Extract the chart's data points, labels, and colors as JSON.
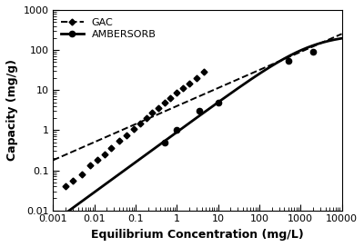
{
  "title": "",
  "xlabel": "Equilibrium Concentration (mg/L)",
  "ylabel": "Capacity (mg/g)",
  "xlim": [
    0.001,
    10000
  ],
  "ylim": [
    0.01,
    1000
  ],
  "background_color": "#ffffff",
  "gac_line_color": "#000000",
  "gac_line_style": "dashed",
  "gac_marker": "D",
  "gac_marker_size": 3.5,
  "gac_label": "GAC",
  "gac_K": 4.0,
  "gac_n": 0.45,
  "amb_line_color": "#000000",
  "amb_line_style": "solid",
  "amb_marker": "o",
  "amb_marker_size": 4.5,
  "amb_label": "AMBERSORB",
  "amb_Qmax": 250,
  "amb_KL": 0.00055,
  "amb_n": 0.75,
  "gac_data_x": [
    0.002,
    0.003,
    0.005,
    0.008,
    0.012,
    0.018,
    0.025,
    0.04,
    0.06,
    0.09,
    0.13,
    0.18,
    0.25,
    0.35,
    0.5,
    0.7,
    1.0,
    1.4,
    2.0,
    3.0,
    4.5
  ],
  "gac_data_y": [
    0.04,
    0.055,
    0.08,
    0.13,
    0.18,
    0.25,
    0.35,
    0.55,
    0.75,
    1.1,
    1.5,
    2.0,
    2.7,
    3.5,
    4.8,
    6.2,
    8.5,
    11.0,
    14.5,
    20.0,
    28.0
  ],
  "amb_data_x": [
    0.5,
    1.0,
    3.5,
    10.0,
    500,
    2000
  ],
  "amb_data_y": [
    0.5,
    1.0,
    3.0,
    5.0,
    55,
    90
  ]
}
